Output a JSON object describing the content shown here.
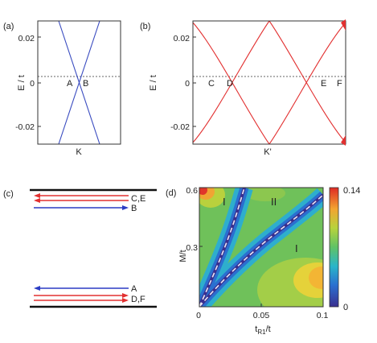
{
  "chart_data": [
    {
      "panel": "(a)",
      "type": "line",
      "title": "",
      "xlabel": "K",
      "ylabel": "E / t",
      "ylim": [
        -0.028,
        0.028
      ],
      "yticks": [
        "0.02",
        "0",
        "-0.02"
      ],
      "reference_line": {
        "y": 0.0032,
        "style": "dashed"
      },
      "series": [
        {
          "x": [
            -1,
            1
          ],
          "y": [
            0.028,
            -0.028
          ],
          "color": "#3a4cc0"
        },
        {
          "x": [
            -1,
            1
          ],
          "y": [
            -0.028,
            0.028
          ],
          "color": "#3a4cc0"
        }
      ],
      "annotations": [
        "A",
        "B"
      ]
    },
    {
      "panel": "(b)",
      "type": "line",
      "title": "",
      "xlabel": "K'",
      "ylabel": "E / t",
      "ylim": [
        -0.028,
        0.028
      ],
      "yticks": [
        "0.02",
        "0",
        "-0.02"
      ],
      "reference_line": {
        "y": 0.0032,
        "style": "dashed"
      },
      "series": [
        {
          "x": [
            -1,
            -0.85,
            -0.6,
            -0.35,
            0,
            0.35,
            0.6,
            0.85,
            1
          ],
          "y": [
            0.028,
            0.024,
            0.009,
            -0.006,
            -0.028,
            -0.006,
            0.009,
            0.024,
            0.028
          ],
          "color": "#e23030"
        },
        {
          "x": [
            -1,
            -0.85,
            -0.6,
            -0.35,
            0,
            0.35,
            0.6,
            0.85,
            1
          ],
          "y": [
            -0.028,
            -0.024,
            -0.009,
            0.006,
            0.028,
            0.006,
            -0.009,
            -0.024,
            -0.028
          ],
          "color": "#e23030"
        }
      ],
      "annotations": [
        "C",
        "D",
        "E",
        "F"
      ]
    },
    {
      "panel": "(c)",
      "type": "diagram",
      "title": "",
      "levels": [
        {
          "arrows": [
            {
              "label": "C,E",
              "color": "#e23030",
              "direction": "left"
            },
            {
              "label": "",
              "color": "#e23030",
              "direction": "left"
            },
            {
              "label": "B",
              "color": "#2b3cc4",
              "direction": "right"
            }
          ]
        },
        {
          "arrows": [
            {
              "label": "A",
              "color": "#2b3cc4",
              "direction": "left"
            },
            {
              "label": "D,F",
              "color": "#e23030",
              "direction": "right"
            },
            {
              "label": "",
              "color": "#e23030",
              "direction": "right"
            }
          ]
        }
      ]
    },
    {
      "panel": "(d)",
      "type": "heatmap",
      "title": "",
      "xlabel": "tR1/t",
      "xlabel_main": "t",
      "xlabel_sub": "R1",
      "xlabel_tail": "/t",
      "ylabel": "M/t",
      "xlim": [
        0,
        0.1
      ],
      "ylim": [
        0,
        0.6
      ],
      "xticks": [
        "0",
        "0.05",
        "0.1"
      ],
      "yticks": [
        "0.6",
        "0.3"
      ],
      "colorbar": {
        "min": 0,
        "max": 0.14,
        "labels": [
          "0.14",
          "0"
        ]
      },
      "region_labels": [
        "I",
        "II",
        "I"
      ],
      "boundaries": [
        {
          "x": [
            0,
            0.02,
            0.033,
            0.04,
            0.045
          ],
          "y": [
            0,
            0.2,
            0.35,
            0.47,
            0.6
          ],
          "style": "dashed"
        },
        {
          "x": [
            0,
            0.03,
            0.06,
            0.085,
            0.1
          ],
          "y": [
            0,
            0.18,
            0.33,
            0.46,
            0.58
          ],
          "style": "dashed"
        }
      ]
    }
  ]
}
